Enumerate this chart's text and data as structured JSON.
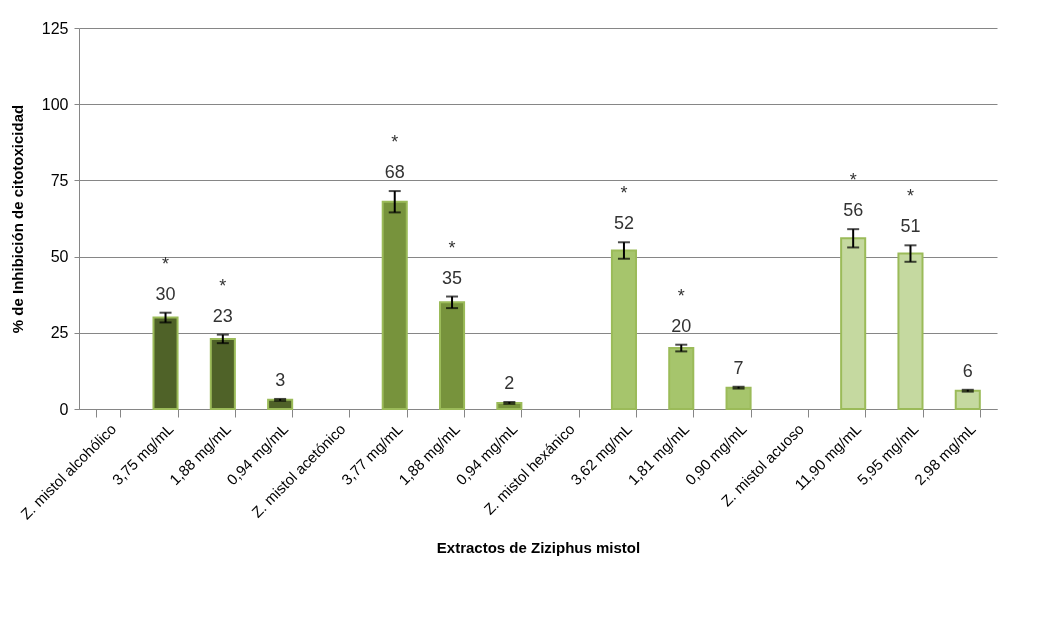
{
  "chart_data": {
    "type": "bar",
    "xlabel": "Extractos de Ziziphus mistol",
    "ylabel": "% de Inhibición de citotoxicidad",
    "categories": [
      "Z. mistol alcohólico",
      "3,75 mg/mL",
      "1,88 mg/mL",
      "0,94 mg/mL",
      "Z. mistol  acetónico",
      "3,77 mg/mL",
      "1,88 mg/mL",
      "0,94 mg/mL",
      "Z. mistol hexánico",
      "3,62 mg/mL",
      "1,81 mg/mL",
      "0,90 mg/mL",
      "Z. mistol acuoso",
      "11,90 mg/mL",
      "5,95 mg/mL",
      "2,98 mg/mL"
    ],
    "values": [
      null,
      30,
      23,
      3,
      null,
      68,
      35,
      2,
      null,
      52,
      20,
      7,
      null,
      56,
      51,
      6
    ],
    "errors": [
      null,
      1.6,
      1.4,
      0.3,
      null,
      3.5,
      1.9,
      0.3,
      null,
      2.7,
      1.1,
      0.3,
      null,
      3,
      2.7,
      0.3
    ],
    "colors": [
      "#4f6228",
      "#4f6228",
      "#4f6228",
      "#4f6228",
      "#77933c",
      "#77933c",
      "#77933c",
      "#77933c",
      "#a6c56c",
      "#a6c56c",
      "#a6c56c",
      "#a6c56c",
      "#c5d9a0",
      "#c5d9a0",
      "#c5d9a0",
      "#c5d9a0"
    ],
    "ylim": [
      0,
      125
    ],
    "yticks": [
      0,
      25,
      50,
      75,
      100,
      125
    ],
    "grid": "y",
    "value_labels": [
      null,
      "*\n30",
      "*\n23",
      "3",
      null,
      "*\n68",
      "*\n35",
      "2",
      null,
      "*\n52",
      "*\n20",
      "7",
      null,
      "*\n56",
      "*\n51",
      "6"
    ]
  }
}
